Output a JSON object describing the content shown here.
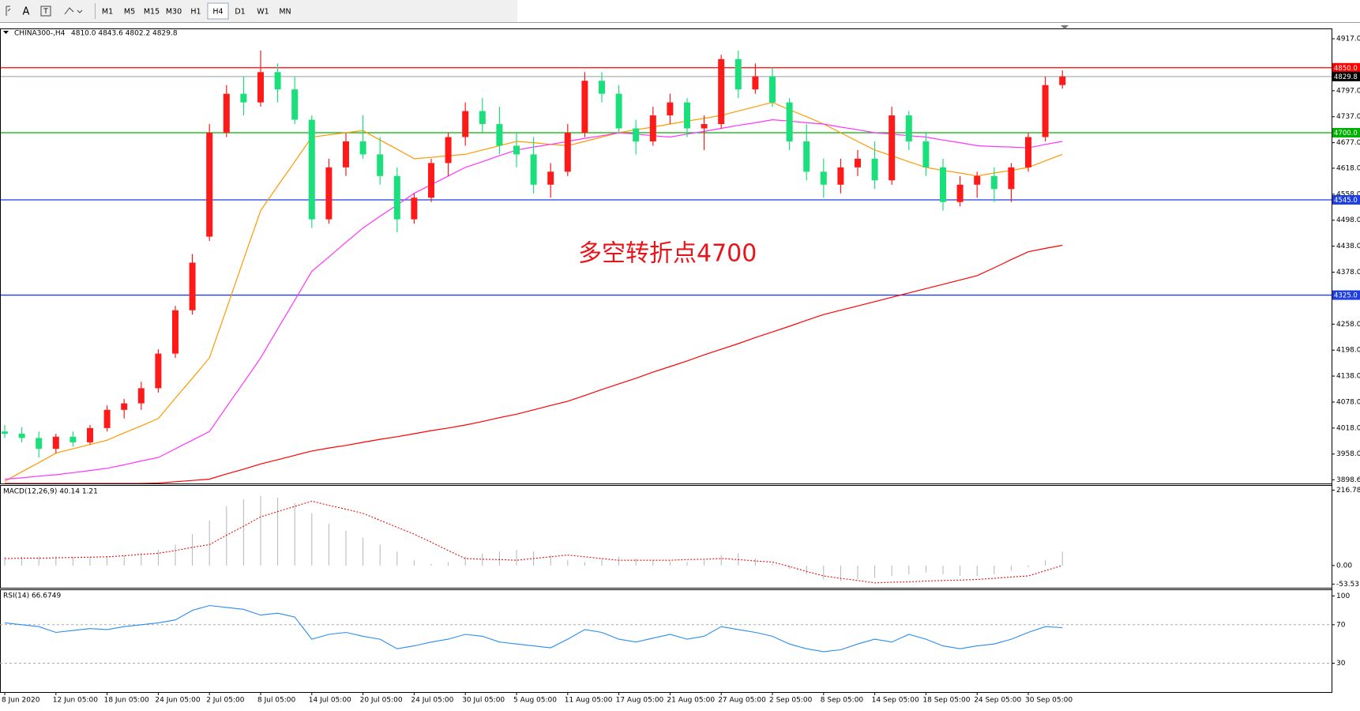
{
  "toolbar": {
    "text_tool": "A",
    "buttons": [
      "M1",
      "M5",
      "M15",
      "M30",
      "H1",
      "H4",
      "D1",
      "W1",
      "MN"
    ],
    "selected": "H4"
  },
  "chart_data": [
    {
      "type": "candlestick",
      "symbol": "CHINA300-,H4",
      "ohlc_text": "4810.0 4843.6 4802.2 4829.8",
      "categories": [
        "8 Jun 2020",
        null,
        null,
        "12 Jun 05:00",
        null,
        null,
        "18 Jun 05:00",
        null,
        null,
        "24 Jun 05:00",
        null,
        null,
        "2 Jul 05:00",
        null,
        null,
        "8 Jul 05:00",
        null,
        null,
        "14 Jul 05:00",
        null,
        null,
        "20 Jul 05:00",
        null,
        null,
        "24 Jul 05:00",
        null,
        null,
        "30 Jul 05:00",
        null,
        null,
        "5 Aug 05:00",
        null,
        null,
        "11 Aug 05:00",
        null,
        null,
        "17 Aug 05:00",
        null,
        null,
        "21 Aug 05:00",
        null,
        null,
        "27 Aug 05:00",
        null,
        null,
        "2 Sep 05:00",
        null,
        null,
        "8 Sep 05:00",
        null,
        null,
        "14 Sep 05:00",
        null,
        null,
        "18 Sep 05:00",
        null,
        null,
        "24 Sep 05:00",
        null,
        null,
        "30 Sep 05:00",
        null,
        null
      ],
      "open": [
        4010,
        4005,
        3995,
        3970,
        3998,
        3985,
        4018,
        4060,
        4075,
        4110,
        4190,
        4290,
        4460,
        4700,
        4790,
        4770,
        4840,
        4800,
        4730,
        4500,
        4620,
        4680,
        4650,
        4600,
        4500,
        4550,
        4630,
        4690,
        4750,
        4720,
        4670,
        4650,
        4580,
        4610,
        4700,
        4820,
        4790,
        4710,
        4680,
        4740,
        4770,
        4710,
        4720,
        4870,
        4800,
        4830,
        4770,
        4680,
        4610,
        4580,
        4620,
        4640,
        4590,
        4740,
        4680,
        4620,
        4540,
        4580,
        4600,
        4570,
        4620,
        4690,
        4810
      ],
      "high": [
        4025,
        4020,
        4010,
        4005,
        4010,
        4025,
        4070,
        4085,
        4125,
        4200,
        4300,
        4420,
        4720,
        4810,
        4830,
        4890,
        4860,
        4830,
        4740,
        4640,
        4700,
        4740,
        4690,
        4620,
        4560,
        4640,
        4700,
        4770,
        4780,
        4760,
        4700,
        4690,
        4630,
        4720,
        4840,
        4840,
        4810,
        4730,
        4760,
        4790,
        4780,
        4740,
        4880,
        4890,
        4860,
        4850,
        4780,
        4720,
        4640,
        4640,
        4660,
        4680,
        4760,
        4750,
        4700,
        4640,
        4600,
        4610,
        4620,
        4630,
        4700,
        4830,
        4844
      ],
      "low": [
        3995,
        3985,
        3950,
        3960,
        3975,
        3980,
        4010,
        4040,
        4060,
        4100,
        4180,
        4280,
        4450,
        4690,
        4740,
        4760,
        4770,
        4720,
        4480,
        4490,
        4600,
        4640,
        4580,
        4470,
        4490,
        4540,
        4600,
        4670,
        4700,
        4650,
        4620,
        4560,
        4550,
        4600,
        4690,
        4770,
        4700,
        4650,
        4670,
        4720,
        4690,
        4660,
        4710,
        4780,
        4790,
        4760,
        4660,
        4590,
        4550,
        4560,
        4600,
        4570,
        4580,
        4660,
        4600,
        4520,
        4530,
        4550,
        4540,
        4540,
        4610,
        4680,
        4802
      ],
      "close": [
        4005,
        3995,
        3970,
        3998,
        3985,
        4018,
        4060,
        4075,
        4110,
        4190,
        4290,
        4400,
        4700,
        4790,
        4770,
        4840,
        4800,
        4730,
        4500,
        4620,
        4680,
        4650,
        4600,
        4500,
        4550,
        4630,
        4690,
        4750,
        4720,
        4670,
        4650,
        4580,
        4610,
        4700,
        4820,
        4790,
        4710,
        4680,
        4740,
        4770,
        4710,
        4720,
        4870,
        4800,
        4830,
        4770,
        4680,
        4610,
        4580,
        4620,
        4640,
        4590,
        4740,
        4680,
        4620,
        4540,
        4580,
        4600,
        4570,
        4620,
        4690,
        4810,
        4830
      ],
      "up_color": "#ff1a1a",
      "down_color": "#19e07a",
      "ylim": [
        3890,
        4939
      ],
      "yticks": [
        {
          "value": 4917,
          "label": "4917.0"
        },
        {
          "value": 4797,
          "label": "4797.0"
        },
        {
          "value": 4737,
          "label": "4737.0"
        },
        {
          "value": 4677,
          "label": "4677.0"
        },
        {
          "value": 4618,
          "label": "4618.0"
        },
        {
          "value": 4558,
          "label": "4558.0"
        },
        {
          "value": 4498,
          "label": "4498.0"
        },
        {
          "value": 4438,
          "label": "4438.0"
        },
        {
          "value": 4378,
          "label": "4378.0"
        },
        {
          "value": 4258,
          "label": "4258.0"
        },
        {
          "value": 4198,
          "label": "4198.0"
        },
        {
          "value": 4138,
          "label": "4138.0"
        },
        {
          "value": 4078,
          "label": "4078.0"
        },
        {
          "value": 4018,
          "label": "4018.0"
        },
        {
          "value": 3958,
          "label": "3958.0"
        },
        3898.6
      ],
      "lines": [
        {
          "color": "#ff9900",
          "values": [
            3895,
            3917,
            3938,
            3960,
            3970,
            3980,
            3990,
            4007,
            4023,
            4040,
            4087,
            4133,
            4180,
            4293,
            4407,
            4520,
            4577,
            4633,
            4690,
            4695,
            4700,
            4705,
            4683,
            4662,
            4640,
            4643,
            4647,
            4650,
            4660,
            4670,
            4680,
            4677,
            4673,
            4670,
            4680,
            4690,
            4700,
            4707,
            4713,
            4720,
            4727,
            4733,
            4740,
            4750,
            4760,
            4770,
            4753,
            4737,
            4720,
            4700,
            4680,
            4660,
            4647,
            4633,
            4620,
            4613,
            4607,
            4600,
            4607,
            4613,
            4620,
            4635,
            4650
          ]
        },
        {
          "color": "#ff33ff",
          "values": [
            3900,
            3903,
            3907,
            3910,
            3915,
            3920,
            3925,
            3933,
            3942,
            3950,
            3970,
            3990,
            4010,
            4067,
            4123,
            4180,
            4247,
            4313,
            4380,
            4413,
            4447,
            4480,
            4507,
            4533,
            4560,
            4580,
            4600,
            4620,
            4633,
            4647,
            4660,
            4667,
            4673,
            4680,
            4687,
            4693,
            4700,
            4697,
            4693,
            4690,
            4697,
            4703,
            4710,
            4717,
            4723,
            4730,
            4727,
            4723,
            4720,
            4713,
            4707,
            4700,
            4697,
            4693,
            4690,
            4683,
            4677,
            4670,
            4668,
            4667,
            4665,
            4673,
            4680
          ]
        },
        {
          "color": "#ff0000",
          "values": [
            3890,
            3890,
            3890,
            3890,
            3890,
            3890,
            3890,
            3890,
            3890,
            3891,
            3894,
            3897,
            3900,
            3912,
            3923,
            3935,
            3945,
            3955,
            3965,
            3972,
            3978,
            3985,
            3992,
            3998,
            4005,
            4012,
            4018,
            4025,
            4033,
            4042,
            4050,
            4060,
            4070,
            4080,
            4093,
            4107,
            4120,
            4133,
            4147,
            4160,
            4173,
            4187,
            4200,
            4213,
            4227,
            4240,
            4253,
            4267,
            4280,
            4290,
            4300,
            4310,
            4320,
            4330,
            4340,
            4350,
            4360,
            4370,
            4388,
            4407,
            4425,
            4433,
            4440
          ]
        }
      ],
      "levels": [
        {
          "value": 4850,
          "label": "4850.0",
          "color": "#ff0000"
        },
        {
          "value": 4829.8,
          "label": "4829.8",
          "color": "#a9b0b8"
        },
        {
          "value": 4700,
          "label": "4700.0",
          "color": "#00b000"
        },
        {
          "value": 4545,
          "label": "4545.0",
          "color": "#1f3fe0"
        },
        {
          "value": 4325,
          "label": "4325.0",
          "color": "#1f3fe0"
        }
      ],
      "annotation": "多空转折点4700"
    },
    {
      "type": "macd",
      "title": "MACD(12,26,9) 40.14 1.21",
      "histogram": [
        25,
        26,
        27,
        26,
        25,
        26,
        28,
        30,
        35,
        45,
        60,
        90,
        130,
        170,
        190,
        200,
        195,
        180,
        150,
        120,
        100,
        80,
        60,
        40,
        15,
        5,
        10,
        25,
        35,
        40,
        45,
        40,
        30,
        15,
        10,
        20,
        25,
        20,
        15,
        12,
        10,
        15,
        30,
        35,
        20,
        5,
        -10,
        -25,
        -40,
        -45,
        -40,
        -35,
        -30,
        -25,
        -20,
        -25,
        -30,
        -30,
        -25,
        -15,
        -5,
        15,
        40
      ],
      "signal": [
        20,
        21,
        21,
        22,
        23,
        24,
        25,
        28,
        32,
        35,
        43,
        52,
        60,
        87,
        113,
        140,
        155,
        170,
        185,
        173,
        162,
        150,
        130,
        110,
        90,
        67,
        43,
        20,
        18,
        17,
        15,
        20,
        25,
        30,
        25,
        20,
        15,
        15,
        15,
        15,
        17,
        18,
        20,
        17,
        13,
        10,
        -3,
        -17,
        -30,
        -37,
        -43,
        -50,
        -48,
        -47,
        -45,
        -43,
        -42,
        -40,
        -37,
        -33,
        -30,
        -15,
        0
      ],
      "histogram_color": "#b4b4b4",
      "signal_color": "#e01010",
      "ylim": [
        -64,
        229
      ],
      "yticks": [
        216.78,
        {
          "value": 0,
          "label": "0.00"
        },
        -53.53
      ]
    },
    {
      "type": "rsi",
      "title": "RSI(14) 66.6749",
      "values": [
        72,
        70,
        68,
        62,
        64,
        66,
        65,
        68,
        70,
        72,
        75,
        85,
        90,
        88,
        86,
        80,
        82,
        78,
        55,
        60,
        62,
        58,
        55,
        45,
        48,
        52,
        55,
        60,
        58,
        52,
        50,
        48,
        46,
        55,
        65,
        62,
        55,
        52,
        56,
        60,
        55,
        58,
        68,
        65,
        62,
        58,
        50,
        45,
        42,
        44,
        50,
        55,
        52,
        60,
        55,
        48,
        45,
        48,
        50,
        55,
        62,
        68,
        67
      ],
      "color": "#2a8cf0",
      "ylim": [
        0,
        106
      ],
      "yticks": [
        100,
        70,
        30
      ],
      "dashed_ticks": [
        70,
        30
      ]
    }
  ]
}
